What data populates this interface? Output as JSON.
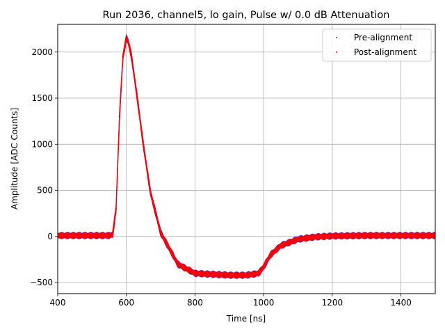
{
  "chart_data": {
    "type": "scatter",
    "title": "Run 2036, channel5, lo gain, Pulse w/ 0.0 dB Attenuation",
    "xlabel": "Time [ns]",
    "ylabel": "Amplitude [ADC Counts]",
    "xlim": [
      400,
      1500
    ],
    "ylim": [
      -620,
      2300
    ],
    "xticks": [
      400,
      600,
      800,
      1000,
      1200,
      1400
    ],
    "yticks": [
      -500,
      0,
      500,
      1000,
      1500,
      2000
    ],
    "grid": true,
    "legend_location": "top-right",
    "series": [
      {
        "name": "Pre-alignment",
        "color": "#3333cc",
        "x": [
          400,
          450,
          500,
          550,
          560,
          570,
          580,
          590,
          600,
          605,
          615,
          630,
          650,
          670,
          700,
          750,
          800,
          850,
          900,
          950,
          985,
          1000,
          1020,
          1050,
          1100,
          1150,
          1200,
          1300,
          1400,
          1500
        ],
        "y": [
          10,
          10,
          10,
          10,
          20,
          300,
          1300,
          1950,
          2150,
          2120,
          1950,
          1550,
          980,
          480,
          40,
          -300,
          -400,
          -410,
          -420,
          -420,
          -400,
          -330,
          -200,
          -100,
          -30,
          -5,
          5,
          10,
          10,
          10
        ]
      },
      {
        "name": "Post-alignment",
        "color": "#ff0000",
        "x": [
          400,
          450,
          500,
          550,
          560,
          570,
          580,
          590,
          600,
          605,
          615,
          630,
          650,
          670,
          700,
          750,
          800,
          850,
          900,
          950,
          985,
          1000,
          1020,
          1050,
          1100,
          1150,
          1200,
          1300,
          1400,
          1500
        ],
        "y": [
          10,
          10,
          10,
          10,
          20,
          300,
          1300,
          1950,
          2150,
          2120,
          1950,
          1550,
          980,
          480,
          40,
          -300,
          -400,
          -410,
          -420,
          -420,
          -400,
          -330,
          -200,
          -100,
          -30,
          -5,
          5,
          10,
          10,
          10
        ]
      }
    ]
  }
}
